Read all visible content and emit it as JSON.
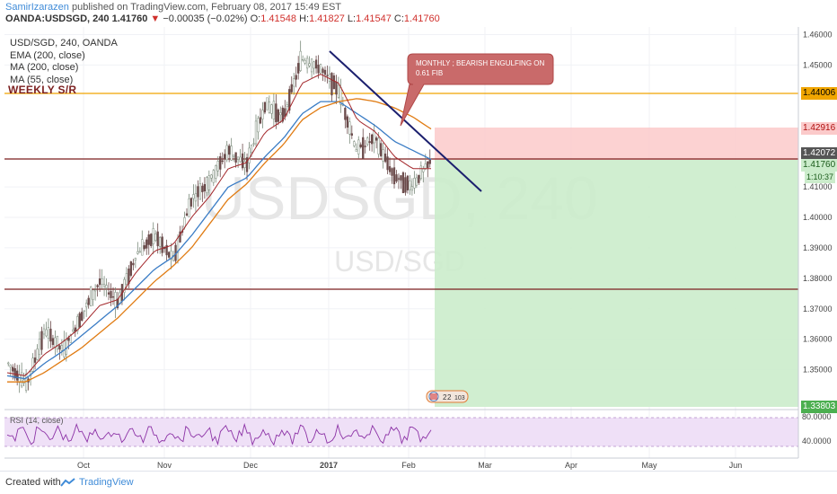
{
  "header": {
    "author": "SamirIzarazen",
    "published_text": "published on TradingView.com, February 08, 2017 15:49 EST",
    "symbol_line": "OANDA:USDSGD, 240",
    "last": "1.41760",
    "change_arrow": "▼",
    "change": "−0.00035 (−0.02%)",
    "open_label": "O:",
    "open": "1.41548",
    "high_label": "H:",
    "high": "1.41827",
    "low_label": "L:",
    "low": "1.41547",
    "close_label": "C:",
    "close": "1.41760"
  },
  "legend": {
    "title": "USD/SGD, 240, OANDA",
    "items": [
      "EMA (200, close)",
      "MA (200, close)",
      "MA (55, close)"
    ]
  },
  "weekly_label": "WEEKLY S/R",
  "watermark": {
    "main": "USDSGD, 240",
    "sub": "USD/SGD"
  },
  "annotation": {
    "text": "MONTHLY ; BEARISH ENGULFING ON 0.61 FIB"
  },
  "price_tags": {
    "weekly_sr": "1.44006",
    "stop": "1.42916",
    "entry": "1.42072",
    "last": "1.41760",
    "countdown": "1:10:37",
    "target": "1.33803"
  },
  "rsi": {
    "label": "RSI (14, close)",
    "upper": "80.0000",
    "lower": "40.0000"
  },
  "events_badge": {
    "a": "2",
    "b": "2",
    "c": "103"
  },
  "footer": {
    "created": "Created with",
    "brand": "TradingView"
  },
  "colors": {
    "ema200": "#3a7cc5",
    "ma200": "#e07b12",
    "ma55": "#a3262a",
    "trendline": "#1b1f6e",
    "weekly_sr": "#f0a500",
    "sr_dark": "#7b1f1f",
    "profit_zone": "#cbeccb",
    "stop_zone": "#fbcaca",
    "rsi": "#8c32a6"
  },
  "chart_data": {
    "type": "line",
    "title": "USD/SGD, 240, OANDA",
    "x_ticks": [
      "Oct",
      "Nov",
      "Dec",
      "2017",
      "Feb",
      "Mar",
      "Apr",
      "May",
      "Jun"
    ],
    "y_ticks": [
      "1.46000",
      "1.45000",
      "1.41000",
      "1.40000",
      "1.39000",
      "1.38000",
      "1.37000",
      "1.36000",
      "1.35000"
    ],
    "ylim": [
      1.3375,
      1.4625
    ],
    "series": [
      {
        "name": "USD/SGD",
        "values": [
          1.352,
          1.345,
          1.363,
          1.356,
          1.368,
          1.379,
          1.372,
          1.388,
          1.394,
          1.386,
          1.406,
          1.412,
          1.422,
          1.417,
          1.437,
          1.433,
          1.452,
          1.449,
          1.442,
          1.422,
          1.426,
          1.414,
          1.41,
          1.418
        ]
      },
      {
        "name": "EMA (200, close)",
        "values": [
          1.348,
          1.347,
          1.352,
          1.356,
          1.361,
          1.366,
          1.371,
          1.377,
          1.383,
          1.387,
          1.394,
          1.402,
          1.41,
          1.413,
          1.42,
          1.426,
          1.434,
          1.438,
          1.438,
          1.434,
          1.43,
          1.425,
          1.422,
          1.419
        ]
      },
      {
        "name": "MA (200, close)",
        "values": [
          1.346,
          1.346,
          1.349,
          1.353,
          1.357,
          1.362,
          1.367,
          1.373,
          1.379,
          1.384,
          1.39,
          1.398,
          1.406,
          1.411,
          1.418,
          1.424,
          1.432,
          1.436,
          1.438,
          1.439,
          1.438,
          1.436,
          1.433,
          1.429
        ]
      },
      {
        "name": "MA (55, close)",
        "values": [
          1.349,
          1.348,
          1.355,
          1.359,
          1.364,
          1.371,
          1.373,
          1.382,
          1.389,
          1.391,
          1.4,
          1.407,
          1.416,
          1.418,
          1.428,
          1.432,
          1.444,
          1.447,
          1.444,
          1.432,
          1.428,
          1.42,
          1.416,
          1.416
        ]
      }
    ],
    "levels": {
      "weekly_sr": 1.44006,
      "stop": 1.42916,
      "entry": 1.42072,
      "target": 1.33803,
      "support": 1.3773
    },
    "rsi_levels": [
      80,
      40
    ],
    "grid": true
  }
}
